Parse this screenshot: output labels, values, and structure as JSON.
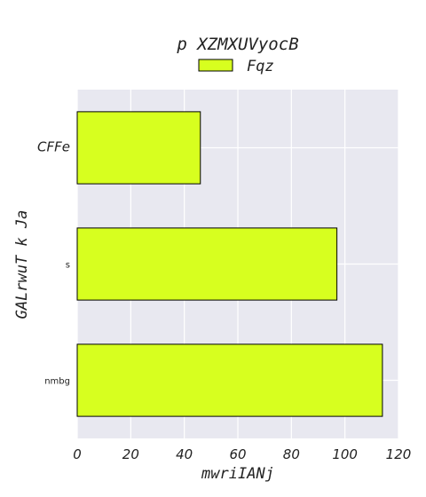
{
  "chart_data": {
    "type": "bar",
    "orientation": "horizontal",
    "title": "p XZMXUVyocB",
    "xlabel": "mwriIANj",
    "ylabel": "GALrwuT k Ja",
    "categories": [
      "CFFe",
      "s",
      "nmbg"
    ],
    "series": [
      {
        "name": "Fqz",
        "values": [
          46,
          97,
          114
        ],
        "color": "#d7ff1f"
      }
    ],
    "xlim": [
      0,
      120
    ],
    "xticks": [
      "0",
      "20",
      "40",
      "60",
      "80",
      "100",
      "120"
    ],
    "grid": true,
    "legend_position": "top-center",
    "background_color": "#e8e8f0",
    "grid_color": "#ffffff"
  }
}
